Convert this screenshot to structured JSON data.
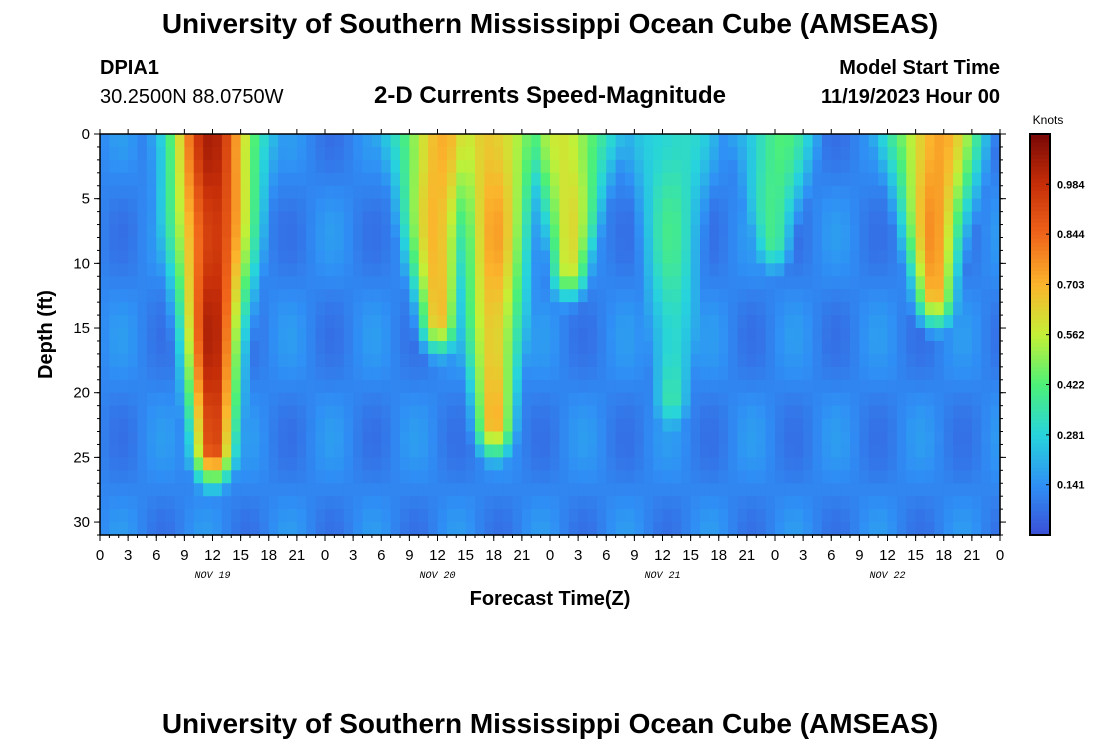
{
  "page_title": "University of Southern Mississippi Ocean Cube (AMSEAS)",
  "footer_title": "University of Southern Mississippi Ocean Cube (AMSEAS)",
  "station": {
    "id": "DPIA1",
    "coords": "30.2500N  88.0750W"
  },
  "model": {
    "label": "Model Start Time",
    "value": "11/19/2023 Hour 00"
  },
  "chart_data": {
    "type": "heatmap",
    "title": "2-D Currents Speed-Magnitude",
    "xlabel": "Forecast Time(Z)",
    "ylabel": "Depth (ft)",
    "xlim": [
      0,
      96
    ],
    "ylim": [
      31,
      0
    ],
    "x_ticks": [
      0,
      3,
      6,
      9,
      12,
      15,
      18,
      21,
      24,
      27,
      30,
      33,
      36,
      39,
      42,
      45,
      48,
      51,
      54,
      57,
      60,
      63,
      66,
      69,
      72,
      75,
      78,
      81,
      84,
      87,
      90,
      93,
      96
    ],
    "x_tick_labels": [
      "0",
      "3",
      "6",
      "9",
      "12",
      "15",
      "18",
      "21",
      "0",
      "3",
      "6",
      "9",
      "12",
      "15",
      "18",
      "21",
      "0",
      "3",
      "6",
      "9",
      "12",
      "15",
      "18",
      "21",
      "0",
      "3",
      "6",
      "9",
      "12",
      "15",
      "18",
      "21",
      "0"
    ],
    "y_ticks": [
      0,
      5,
      10,
      15,
      20,
      25,
      30
    ],
    "y_tick_labels": [
      "0",
      "5",
      "10",
      "15",
      "20",
      "25",
      "30"
    ],
    "day_labels": [
      {
        "hour": 12,
        "label": "NOV 19"
      },
      {
        "hour": 36,
        "label": "NOV 20"
      },
      {
        "hour": 60,
        "label": "NOV 21"
      },
      {
        "hour": 84,
        "label": "NOV 22"
      }
    ],
    "colorbar": {
      "label": "Knots",
      "range": [
        0,
        1.125
      ],
      "ticks": [
        0.141,
        0.281,
        0.422,
        0.562,
        0.703,
        0.844,
        0.984
      ],
      "tick_labels": [
        "0.141",
        "0.281",
        "0.422",
        "0.562",
        "0.703",
        "0.844",
        "0.984"
      ],
      "colors": [
        "#3a4fd6",
        "#2f8ff5",
        "#27d4dc",
        "#4cf078",
        "#c4f036",
        "#fbb52c",
        "#f0651a",
        "#c62e08",
        "#7a0806"
      ]
    },
    "approximate_features": [
      {
        "hour": 12,
        "depth_extent_ft": 24,
        "peak_knots": 1.0,
        "note": "strong surface current"
      },
      {
        "hour": 36,
        "depth_extent_ft": 14,
        "peak_knots": 0.7
      },
      {
        "hour": 42,
        "depth_extent_ft": 22,
        "peak_knots": 0.7
      },
      {
        "hour": 50,
        "depth_extent_ft": 10,
        "peak_knots": 0.6
      },
      {
        "hour": 61,
        "depth_extent_ft": 20,
        "peak_knots": 0.35
      },
      {
        "hour": 72,
        "depth_extent_ft": 8,
        "peak_knots": 0.4
      },
      {
        "hour": 89,
        "depth_extent_ft": 12,
        "peak_knots": 0.75
      }
    ]
  }
}
